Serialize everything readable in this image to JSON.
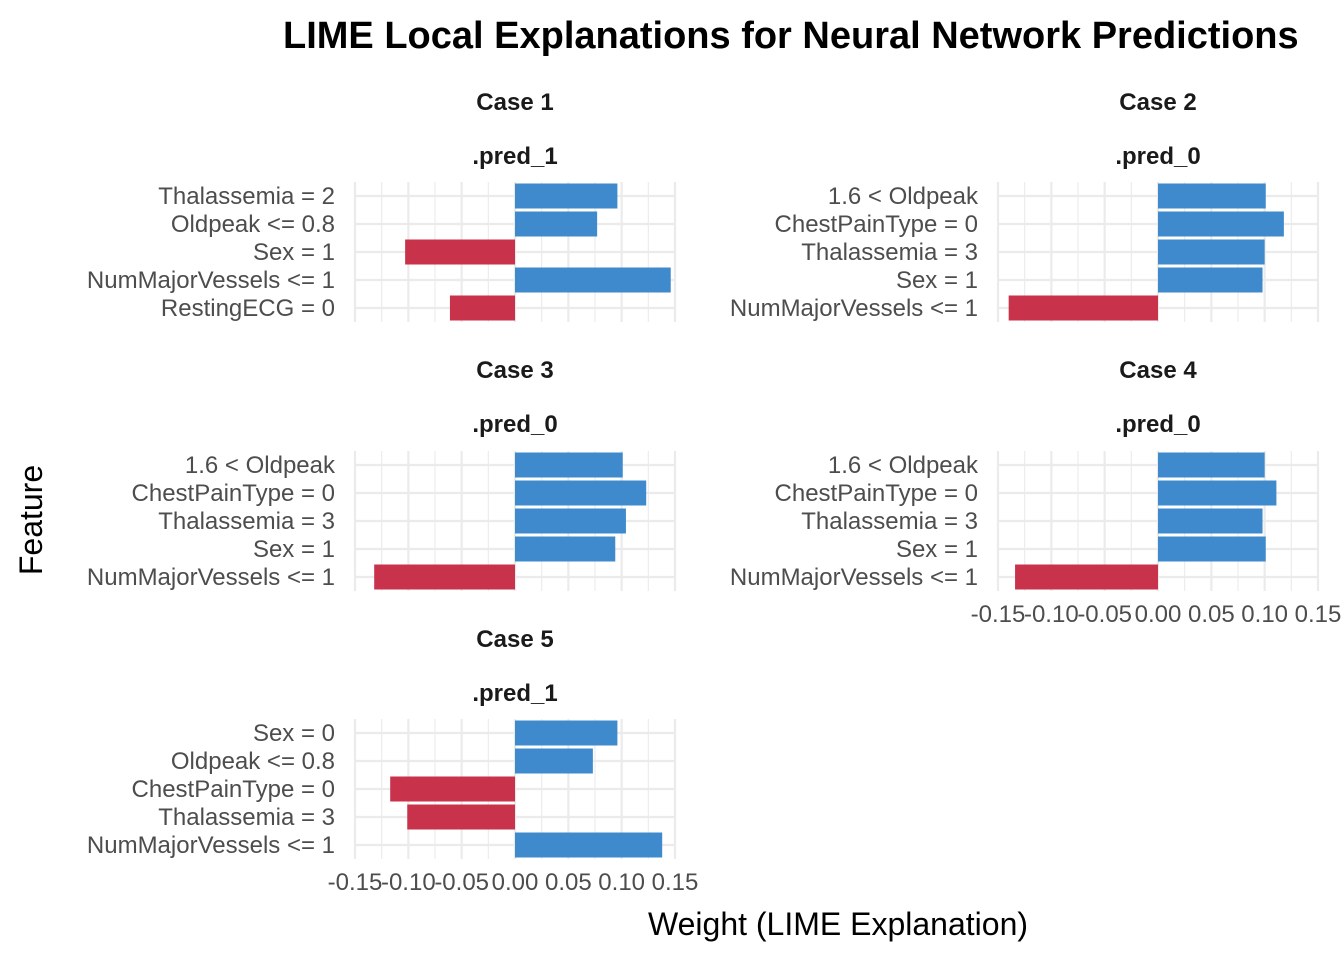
{
  "colors": {
    "positive": "#3E8ACC",
    "negative": "#C8324A",
    "grid": "#EBEBEB"
  },
  "chart_data": {
    "type": "bar",
    "orientation": "horizontal",
    "title": "LIME Local Explanations for Neural Network Predictions",
    "xlabel": "Weight (LIME Explanation)",
    "ylabel": "Feature",
    "xlim": [
      -0.15,
      0.15
    ],
    "xticks": [
      "-0.15",
      "-0.10",
      "-0.05",
      "0.00",
      "0.05",
      "0.10",
      "0.15"
    ],
    "grid": true,
    "legend": "none",
    "panels": [
      {
        "case": "Case 1",
        "label": ".pred_1",
        "features": [
          "Thalassemia = 2",
          "Oldpeak <= 0.8",
          "Sex = 1",
          "NumMajorVessels <= 1",
          "RestingECG = 0"
        ],
        "values": [
          0.096,
          0.077,
          -0.103,
          0.146,
          -0.061
        ]
      },
      {
        "case": "Case 2",
        "label": ".pred_0",
        "features": [
          "1.6 < Oldpeak",
          "ChestPainType = 0",
          "Thalassemia = 3",
          "Sex = 1",
          "NumMajorVessels <= 1"
        ],
        "values": [
          0.101,
          0.118,
          0.1,
          0.098,
          -0.14
        ]
      },
      {
        "case": "Case 3",
        "label": ".pred_0",
        "features": [
          "1.6 < Oldpeak",
          "ChestPainType = 0",
          "Thalassemia = 3",
          "Sex = 1",
          "NumMajorVessels <= 1"
        ],
        "values": [
          0.101,
          0.123,
          0.104,
          0.094,
          -0.132
        ]
      },
      {
        "case": "Case 4",
        "label": ".pred_0",
        "features": [
          "1.6 < Oldpeak",
          "ChestPainType = 0",
          "Thalassemia = 3",
          "Sex = 1",
          "NumMajorVessels <= 1"
        ],
        "values": [
          0.1,
          0.111,
          0.098,
          0.101,
          -0.134
        ]
      },
      {
        "case": "Case 5",
        "label": ".pred_1",
        "features": [
          "Sex = 0",
          "Oldpeak <= 0.8",
          "ChestPainType = 0",
          "Thalassemia = 3",
          "NumMajorVessels <= 1"
        ],
        "values": [
          0.096,
          0.073,
          -0.117,
          -0.101,
          0.138
        ]
      }
    ]
  }
}
